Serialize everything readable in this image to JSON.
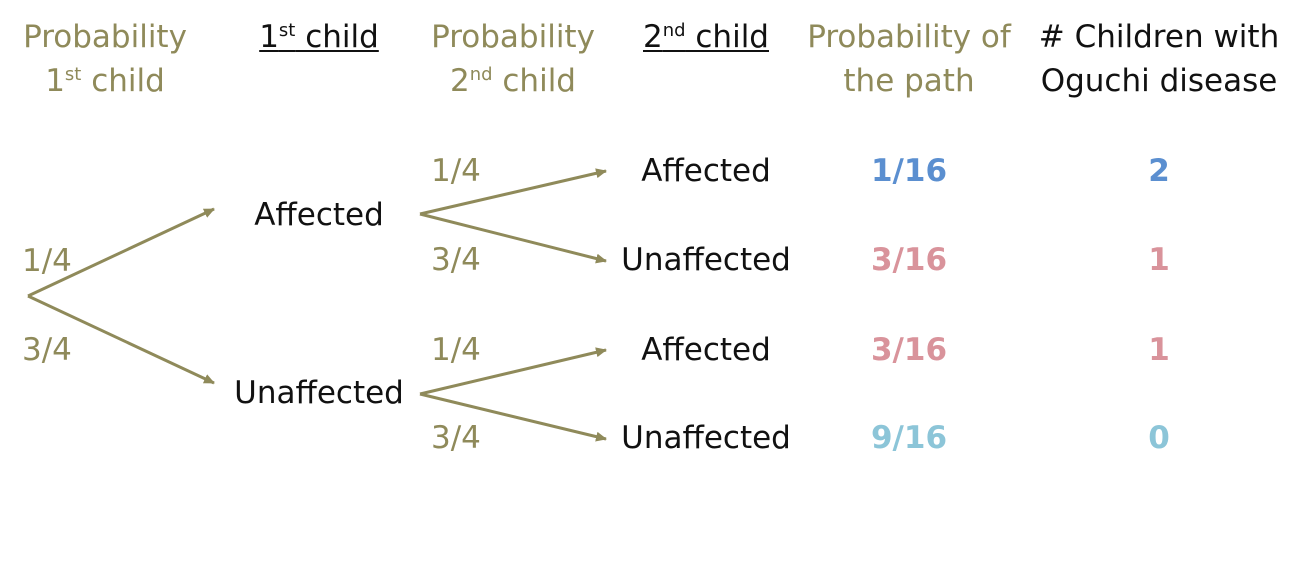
{
  "colors": {
    "olive": "#8f8a5a",
    "black": "#111111",
    "blue": "#5b8fd0",
    "pink": "#d9939b",
    "lightblue": "#8cc5d8"
  },
  "headers": {
    "prob_first": {
      "line1": "Probability",
      "line2_num": "1",
      "line2_sup": "st",
      "line2_rest": " child"
    },
    "first_child": {
      "num": "1",
      "sup": "st",
      "rest": " child"
    },
    "prob_second": {
      "line1": "Probability",
      "line2_num": "2",
      "line2_sup": "nd",
      "line2_rest": " child"
    },
    "second_child": {
      "num": "2",
      "sup": "nd",
      "rest": " child"
    },
    "path_prob": {
      "line1": "Probability of",
      "line2": "the path"
    },
    "children_count": {
      "line1": "# Children with",
      "line2": "Oguchi disease"
    }
  },
  "first_level": {
    "prob_affected": "1/4",
    "prob_unaffected": "3/4",
    "affected": "Affected",
    "unaffected": "Unaffected"
  },
  "second_level": {
    "prob_1": "1/4",
    "prob_2": "3/4",
    "prob_3": "1/4",
    "prob_4": "3/4",
    "outcome_1": "Affected",
    "outcome_2": "Unaffected",
    "outcome_3": "Affected",
    "outcome_4": "Unaffected"
  },
  "results": [
    {
      "path_probability": "1/16",
      "children_affected": "2",
      "color": "blue"
    },
    {
      "path_probability": "3/16",
      "children_affected": "1",
      "color": "pink"
    },
    {
      "path_probability": "3/16",
      "children_affected": "1",
      "color": "pink"
    },
    {
      "path_probability": "9/16",
      "children_affected": "0",
      "color": "lightblue"
    }
  ]
}
